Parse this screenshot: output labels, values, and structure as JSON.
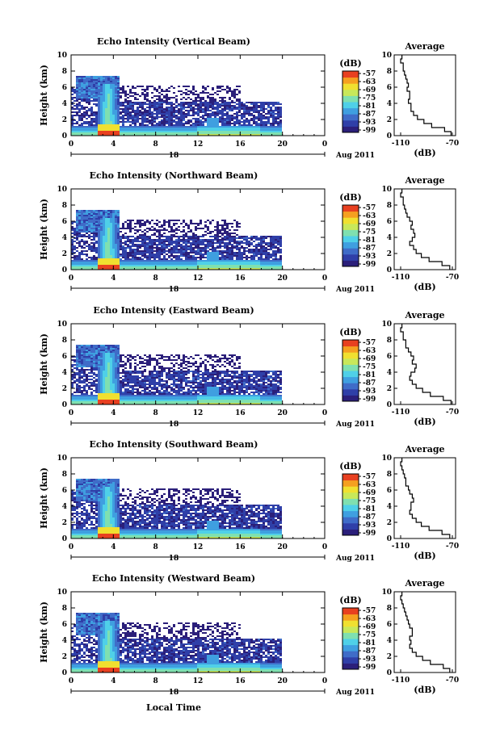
{
  "footer": {
    "xlabel": "Local Time"
  },
  "date_label": "Aug 2011",
  "colorbar": {
    "unit_label": "(dB)",
    "ticks": [
      "-57",
      "-63",
      "-69",
      "-75",
      "-81",
      "-87",
      "-93",
      "-99"
    ],
    "colors": [
      "#2b1f7a",
      "#2f3fa8",
      "#3f6cc8",
      "#3f9fe0",
      "#4fd0e8",
      "#7fe0b0",
      "#c8e85a",
      "#f0e030",
      "#f5a020",
      "#e84020"
    ]
  },
  "chart_data": [
    {
      "type": "heatmap",
      "title": "Echo Intensity (Vertical Beam)",
      "ylabel": "Height (km)",
      "ylim": [
        0,
        10
      ],
      "yticks": [
        "0",
        "2",
        "4",
        "6",
        "8",
        "10"
      ],
      "xlim": [
        0,
        24
      ],
      "xticks": [
        "0",
        "4",
        "8",
        "12",
        "16",
        "20",
        "0"
      ],
      "day_label": "18",
      "profile": {
        "title": "Average",
        "xlabel": "(dB)",
        "xlim": [
          -110,
          -70
        ],
        "xticks": [
          "-110",
          "-70"
        ],
        "yticks": [
          "0",
          "2",
          "4",
          "6",
          "8",
          "10"
        ],
        "heights": [
          0,
          0.5,
          1,
          1.5,
          2,
          2.5,
          3,
          3.5,
          4,
          4.5,
          5,
          5.5,
          6,
          6.5,
          7,
          7.5,
          8,
          8.5,
          9,
          9.5
        ],
        "values": [
          -71,
          -76,
          -86,
          -92,
          -97,
          -100,
          -102,
          -102,
          -104,
          -103,
          -103,
          -105,
          -104,
          -105,
          -106,
          -107,
          -108,
          -108,
          -110,
          -109
        ]
      }
    },
    {
      "type": "heatmap",
      "title": "Echo Intensity (Northward Beam)",
      "ylabel": "Height (km)",
      "ylim": [
        0,
        10
      ],
      "yticks": [
        "0",
        "2",
        "4",
        "6",
        "8",
        "10"
      ],
      "xlim": [
        0,
        24
      ],
      "xticks": [
        "0",
        "4",
        "8",
        "12",
        "16",
        "20",
        "0"
      ],
      "day_label": "18",
      "profile": {
        "title": "Average",
        "xlabel": "(dB)",
        "xlim": [
          -110,
          -70
        ],
        "xticks": [
          "-110",
          "-70"
        ],
        "yticks": [
          "0",
          "2",
          "4",
          "6",
          "8",
          "10"
        ],
        "heights": [
          0,
          0.5,
          1,
          1.5,
          2,
          2.5,
          3,
          3.5,
          4,
          4.5,
          5,
          5.5,
          6,
          6.5,
          7,
          7.5,
          8,
          8.5,
          9,
          9.5
        ],
        "values": [
          -72,
          -78,
          -88,
          -94,
          -98,
          -100,
          -103,
          -101,
          -99,
          -100,
          -102,
          -101,
          -103,
          -105,
          -106,
          -107,
          -108,
          -108,
          -110,
          -109
        ]
      }
    },
    {
      "type": "heatmap",
      "title": "Echo Intensity (Eastward Beam)",
      "ylabel": "Height (km)",
      "ylim": [
        0,
        10
      ],
      "yticks": [
        "0",
        "2",
        "4",
        "6",
        "8",
        "10"
      ],
      "xlim": [
        0,
        24
      ],
      "xticks": [
        "0",
        "4",
        "8",
        "12",
        "16",
        "20",
        "0"
      ],
      "day_label": "18",
      "profile": {
        "title": "Average",
        "xlabel": "(dB)",
        "xlim": [
          -110,
          -70
        ],
        "xticks": [
          "-110",
          "-70"
        ],
        "yticks": [
          "0",
          "2",
          "4",
          "6",
          "8",
          "10"
        ],
        "heights": [
          0,
          0.5,
          1,
          1.5,
          2,
          2.5,
          3,
          3.5,
          4,
          4.5,
          5,
          5.5,
          6,
          6.5,
          7,
          7.5,
          8,
          8.5,
          9,
          9.5
        ],
        "values": [
          -71,
          -77,
          -87,
          -93,
          -98,
          -101,
          -103,
          -102,
          -99,
          -98,
          -101,
          -100,
          -102,
          -104,
          -106,
          -106,
          -108,
          -108,
          -110,
          -109
        ]
      }
    },
    {
      "type": "heatmap",
      "title": "Echo Intensity (Southward Beam)",
      "ylabel": "Height (km)",
      "ylim": [
        0,
        10
      ],
      "yticks": [
        "0",
        "2",
        "4",
        "6",
        "8",
        "10"
      ],
      "xlim": [
        0,
        24
      ],
      "xticks": [
        "0",
        "4",
        "8",
        "12",
        "16",
        "20",
        "0"
      ],
      "day_label": "18",
      "profile": {
        "title": "Average",
        "xlabel": "(dB)",
        "xlim": [
          -110,
          -70
        ],
        "xticks": [
          "-110",
          "-70"
        ],
        "yticks": [
          "0",
          "2",
          "4",
          "6",
          "8",
          "10"
        ],
        "heights": [
          0,
          0.5,
          1,
          1.5,
          2,
          2.5,
          3,
          3.5,
          4,
          4.5,
          5,
          5.5,
          6,
          6.5,
          7,
          7.5,
          8,
          8.5,
          9,
          9.5
        ],
        "values": [
          -72,
          -78,
          -88,
          -94,
          -98,
          -101,
          -103,
          -102,
          -102,
          -100,
          -101,
          -103,
          -104,
          -106,
          -106,
          -107,
          -108,
          -109,
          -110,
          -109
        ]
      }
    },
    {
      "type": "heatmap",
      "title": "Echo Intensity (Westward Beam)",
      "ylabel": "Height (km)",
      "ylim": [
        0,
        10
      ],
      "yticks": [
        "0",
        "2",
        "4",
        "6",
        "8",
        "10"
      ],
      "xlim": [
        0,
        24
      ],
      "xticks": [
        "0",
        "4",
        "8",
        "12",
        "16",
        "20",
        "0"
      ],
      "day_label": "18",
      "profile": {
        "title": "Average",
        "xlabel": "(dB)",
        "xlim": [
          -110,
          -70
        ],
        "xticks": [
          "-110",
          "-70"
        ],
        "yticks": [
          "0",
          "2",
          "4",
          "6",
          "8",
          "10"
        ],
        "heights": [
          0,
          0.5,
          1,
          1.5,
          2,
          2.5,
          3,
          3.5,
          4,
          4.5,
          5,
          5.5,
          6,
          6.5,
          7,
          7.5,
          8,
          8.5,
          9,
          9.5
        ],
        "values": [
          -72,
          -77,
          -87,
          -93,
          -98,
          -101,
          -103,
          -102,
          -103,
          -101,
          -101,
          -103,
          -104,
          -105,
          -106,
          -107,
          -108,
          -109,
          -110,
          -109
        ]
      }
    }
  ]
}
